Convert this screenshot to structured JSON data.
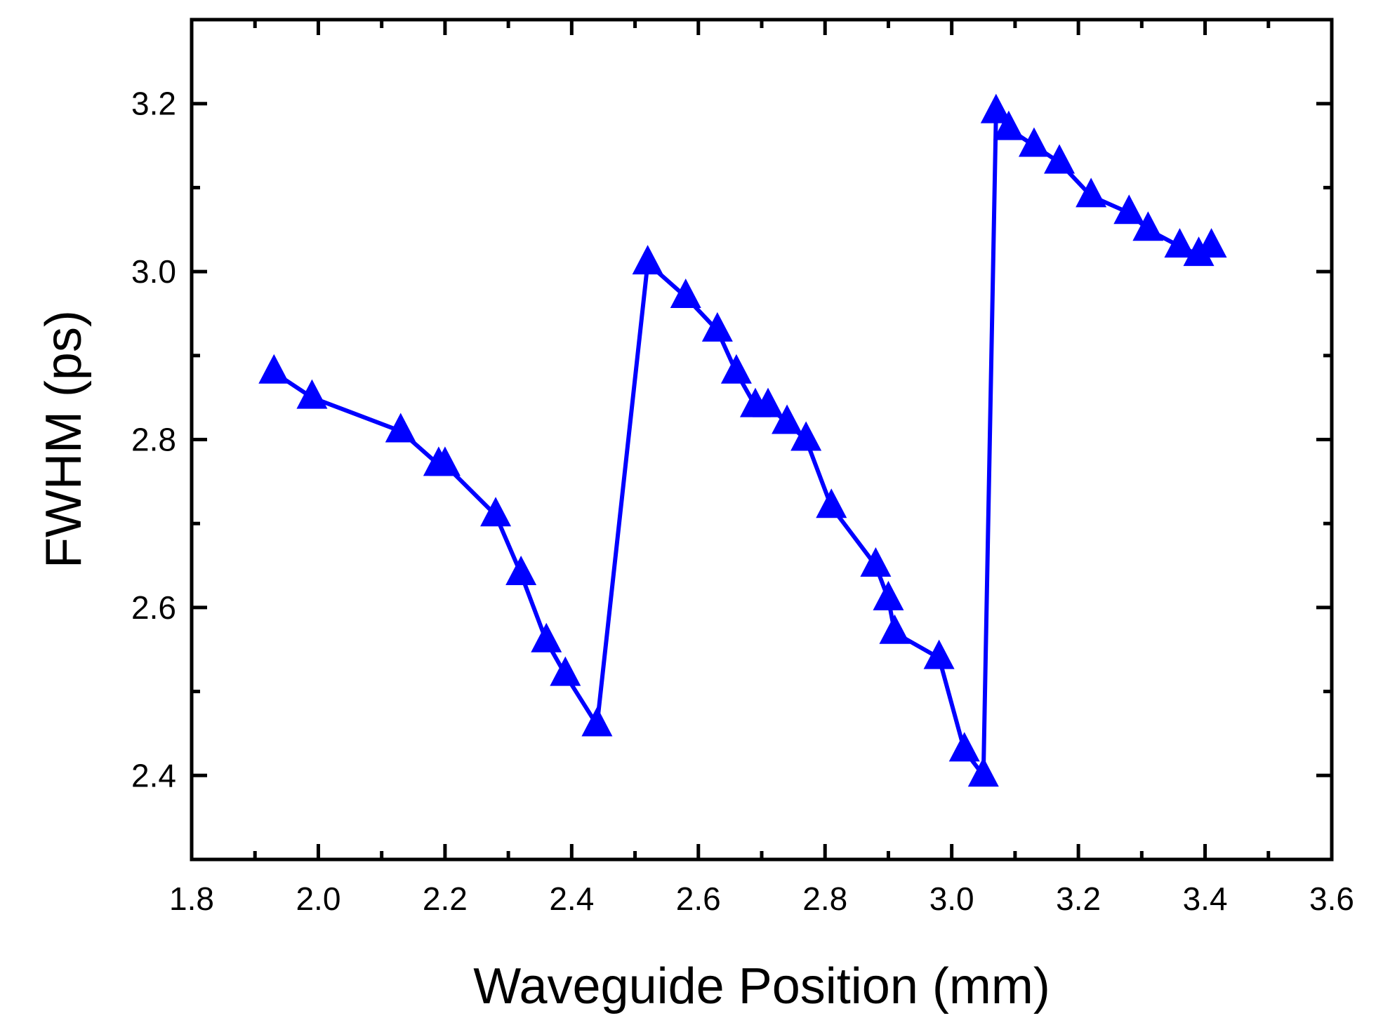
{
  "chart_data": {
    "type": "line",
    "title": "",
    "xlabel": "Waveguide  Position (mm)",
    "ylabel": "FWHM (ps)",
    "xlim": [
      1.8,
      3.6
    ],
    "ylim": [
      2.3,
      3.3
    ],
    "x_ticks": [
      1.8,
      2.0,
      2.2,
      2.4,
      2.6,
      2.8,
      3.0,
      3.2,
      3.4,
      3.6
    ],
    "x_tick_labels": [
      "1.8",
      "2.0",
      "2.2",
      "2.4",
      "2.6",
      "2.8",
      "3.0",
      "3.2",
      "3.4",
      "3.6"
    ],
    "x_minor_ticks": [
      1.9,
      2.1,
      2.3,
      2.5,
      2.7,
      2.9,
      3.1,
      3.3,
      3.5
    ],
    "y_ticks": [
      2.4,
      2.6,
      2.8,
      3.0,
      3.2
    ],
    "y_tick_labels": [
      "2.4",
      "2.6",
      "2.8",
      "3.0",
      "3.2"
    ],
    "y_minor_ticks": [
      2.3,
      2.5,
      2.7,
      2.9,
      3.1,
      3.3
    ],
    "grid": false,
    "series": [
      {
        "name": "FWHM",
        "color": "#0000ff",
        "marker": "triangle-up",
        "x": [
          1.93,
          1.99,
          2.13,
          2.19,
          2.2,
          2.28,
          2.32,
          2.36,
          2.39,
          2.44,
          2.52,
          2.58,
          2.63,
          2.66,
          2.69,
          2.71,
          2.74,
          2.77,
          2.81,
          2.88,
          2.9,
          2.91,
          2.98,
          3.02,
          3.05,
          3.07,
          3.09,
          3.13,
          3.17,
          3.22,
          3.28,
          3.31,
          3.36,
          3.39,
          3.41
        ],
        "y": [
          2.88,
          2.85,
          2.81,
          2.77,
          2.77,
          2.71,
          2.64,
          2.56,
          2.52,
          2.46,
          3.01,
          2.97,
          2.93,
          2.88,
          2.84,
          2.84,
          2.82,
          2.8,
          2.72,
          2.65,
          2.61,
          2.57,
          2.54,
          2.43,
          2.4,
          3.19,
          3.17,
          3.15,
          3.13,
          3.09,
          3.07,
          3.05,
          3.03,
          3.02,
          3.03
        ]
      }
    ]
  }
}
